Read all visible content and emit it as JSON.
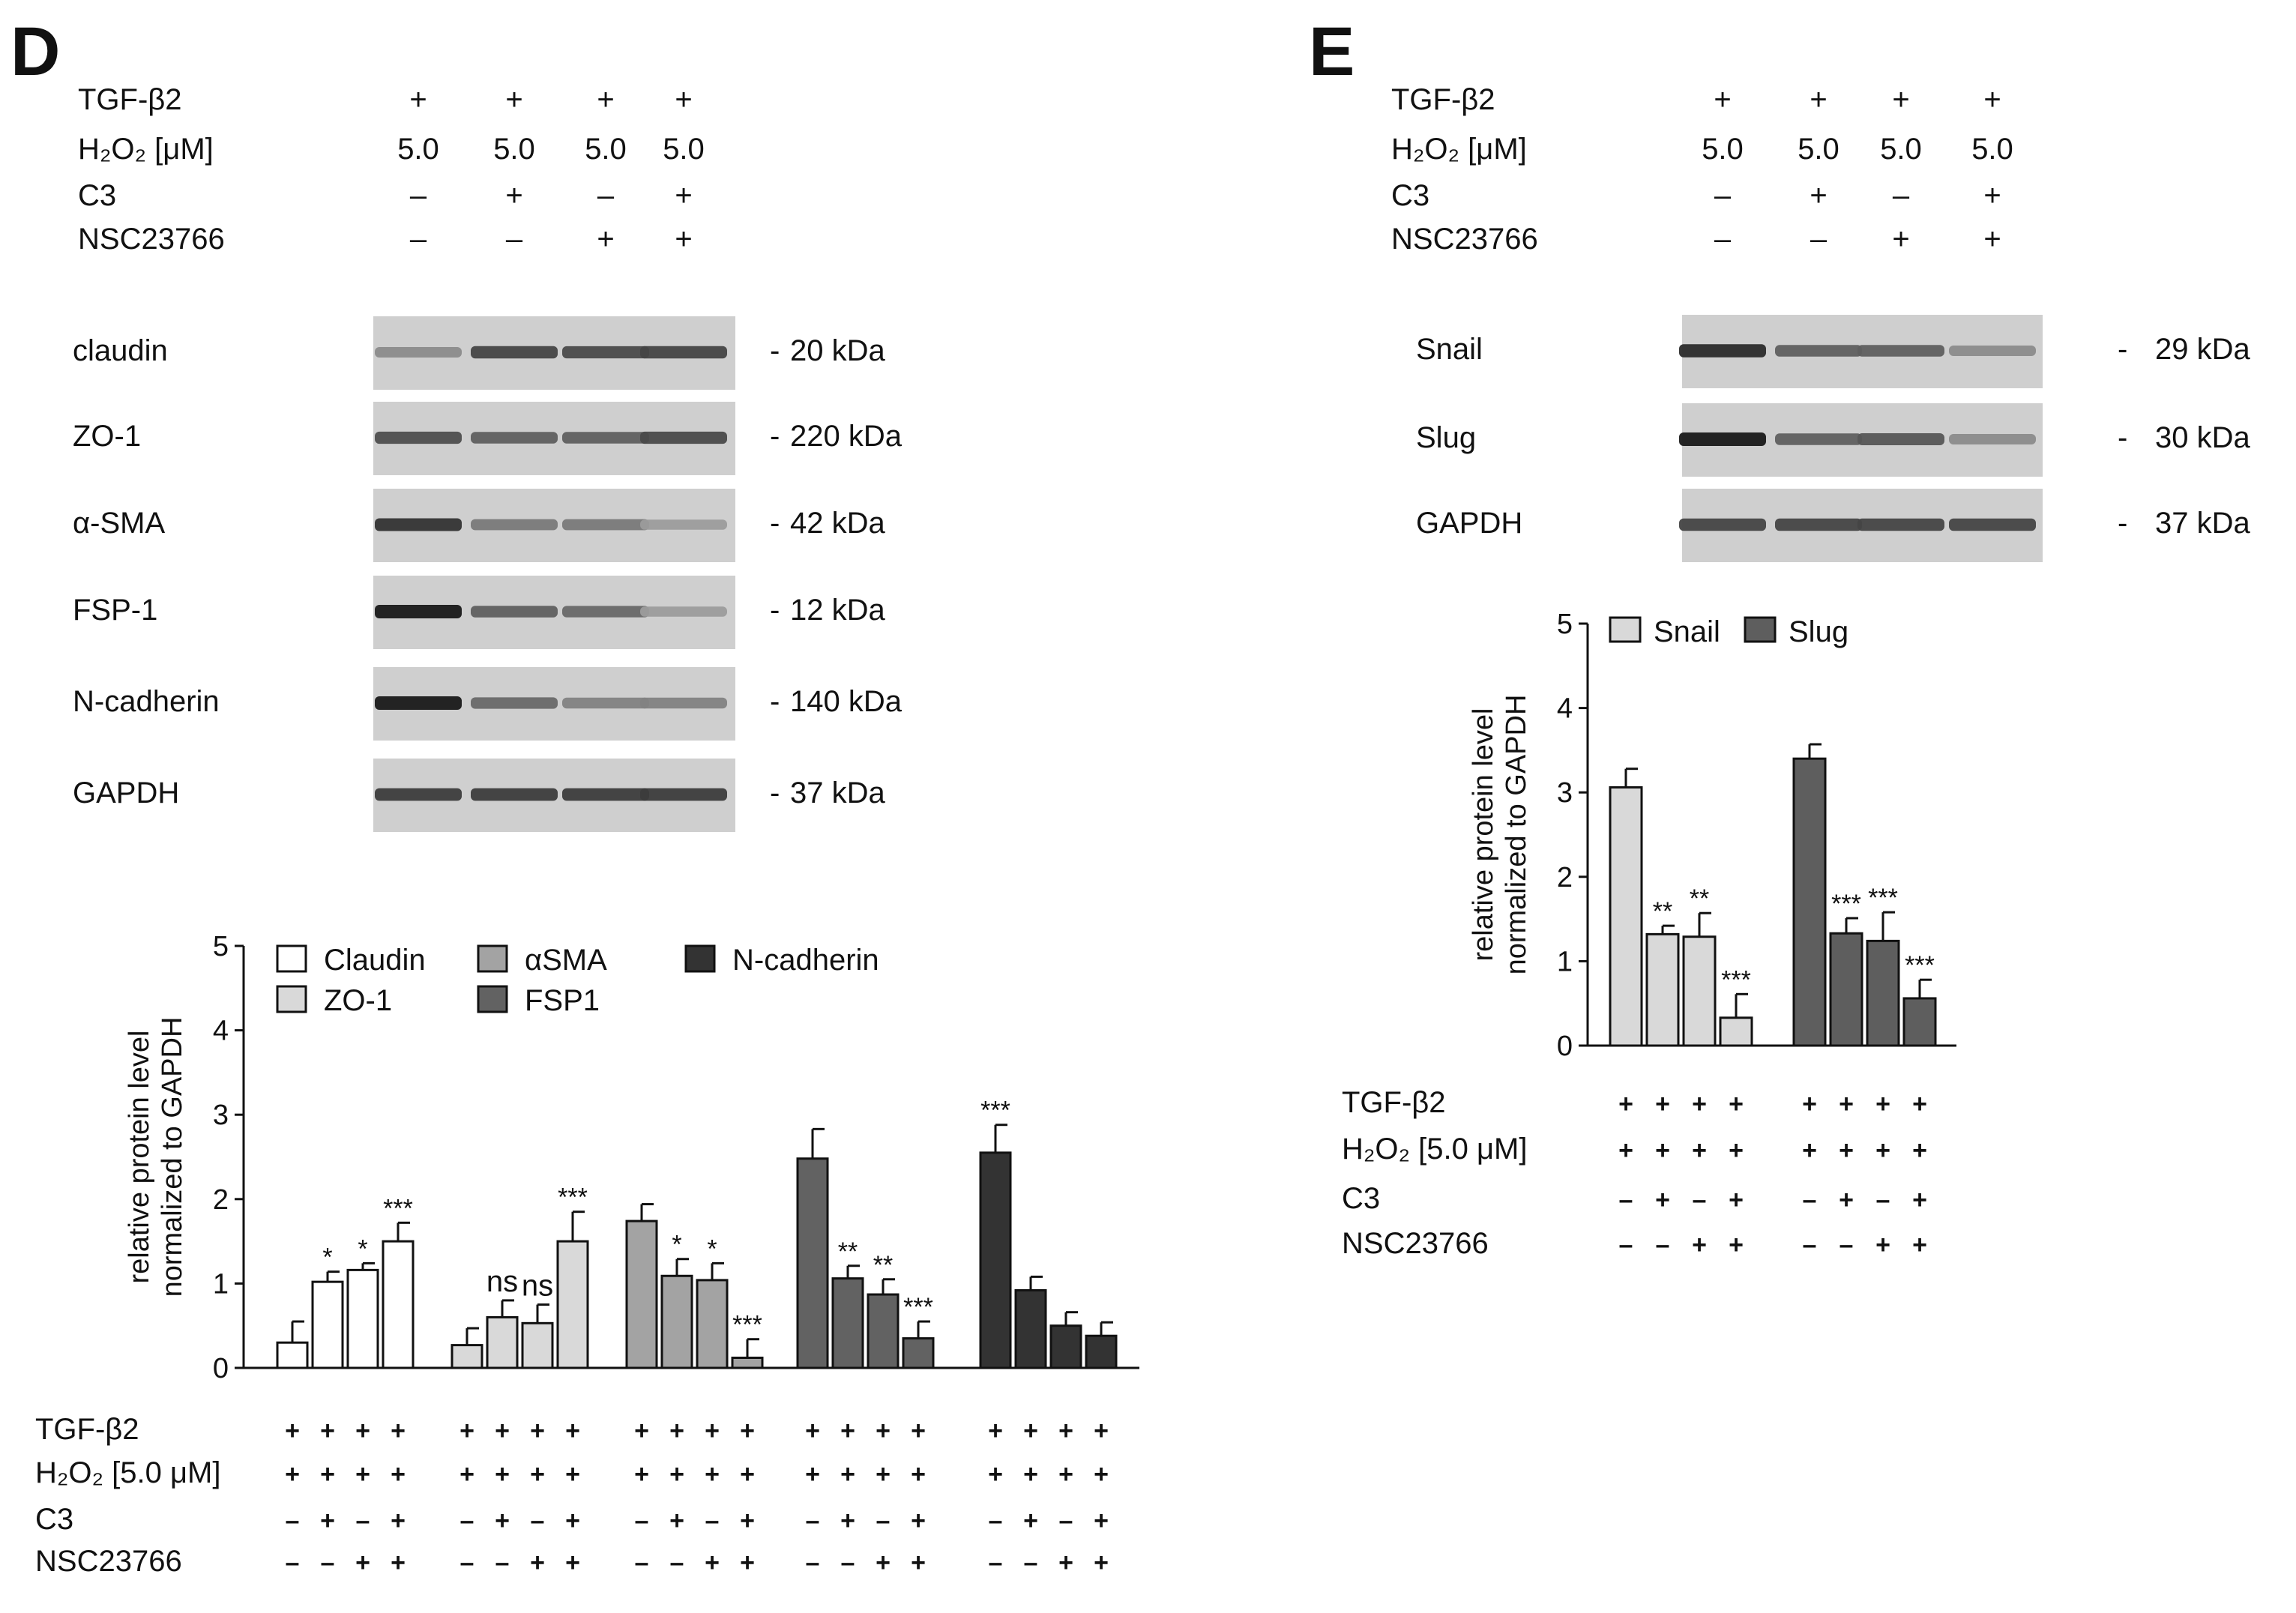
{
  "panel_d": {
    "letter": "D",
    "treatments": [
      {
        "label": "TGF-β2",
        "values": [
          "+",
          "+",
          "+",
          "+"
        ]
      },
      {
        "label": "H₂O₂ [μM]",
        "values": [
          "5.0",
          "5.0",
          "5.0",
          "5.0"
        ]
      },
      {
        "label": "C3",
        "values": [
          "–",
          "+",
          "–",
          "+"
        ]
      },
      {
        "label": "NSC23766",
        "values": [
          "–",
          "–",
          "+",
          "+"
        ]
      }
    ],
    "blots": [
      {
        "name": "claudin",
        "size": "20 kDa",
        "intensity": [
          0.35,
          0.75,
          0.72,
          0.75
        ]
      },
      {
        "name": "ZO-1",
        "size": "220 kDa",
        "intensity": [
          0.7,
          0.6,
          0.6,
          0.72
        ]
      },
      {
        "name": "α-SMA",
        "size": "42 kDa",
        "intensity": [
          0.85,
          0.45,
          0.45,
          0.25
        ]
      },
      {
        "name": "FSP-1",
        "size": "12 kDa",
        "intensity": [
          1.0,
          0.6,
          0.55,
          0.25
        ]
      },
      {
        "name": "N-cadherin",
        "size": "140 kDa",
        "intensity": [
          1.0,
          0.55,
          0.4,
          0.4
        ]
      },
      {
        "name": "GAPDH",
        "size": "37 kDa",
        "intensity": [
          0.8,
          0.8,
          0.8,
          0.8
        ]
      }
    ],
    "bottom_rows": [
      {
        "label": "TGF-β2",
        "values": [
          "+",
          "+",
          "+",
          "+"
        ]
      },
      {
        "label": "H₂O₂ [5.0 μM]",
        "values": [
          "+",
          "+",
          "+",
          "+"
        ]
      },
      {
        "label": "C3",
        "values": [
          "–",
          "+",
          "–",
          "+"
        ]
      },
      {
        "label": "NSC23766",
        "values": [
          "–",
          "–",
          "+",
          "+"
        ]
      }
    ]
  },
  "panel_e": {
    "letter": "E",
    "treatments": [
      {
        "label": "TGF-β2",
        "values": [
          "+",
          "+",
          "+",
          "+"
        ]
      },
      {
        "label": "H₂O₂ [μM]",
        "values": [
          "5.0",
          "5.0",
          "5.0",
          "5.0"
        ]
      },
      {
        "label": "C3",
        "values": [
          "–",
          "+",
          "–",
          "+"
        ]
      },
      {
        "label": "NSC23766",
        "values": [
          "–",
          "–",
          "+",
          "+"
        ]
      }
    ],
    "blots": [
      {
        "name": "Snail",
        "size": "29 kDa",
        "intensity": [
          0.9,
          0.6,
          0.6,
          0.35
        ]
      },
      {
        "name": "Slug",
        "size": "30 kDa",
        "intensity": [
          1.0,
          0.6,
          0.65,
          0.35
        ]
      },
      {
        "name": "GAPDH",
        "size": "37 kDa",
        "intensity": [
          0.75,
          0.75,
          0.75,
          0.75
        ]
      }
    ],
    "bottom_rows": [
      {
        "label": "TGF-β2",
        "values": [
          "+",
          "+",
          "+",
          "+"
        ]
      },
      {
        "label": "H₂O₂ [5.0 μM]",
        "values": [
          "+",
          "+",
          "+",
          "+"
        ]
      },
      {
        "label": "C3",
        "values": [
          "–",
          "+",
          "–",
          "+"
        ]
      },
      {
        "label": "NSC23766",
        "values": [
          "–",
          "–",
          "+",
          "+"
        ]
      }
    ]
  },
  "colors": {
    "claudin": "#ffffff",
    "zo1": "#d9d9d9",
    "asma": "#a3a3a3",
    "fsp1": "#626262",
    "ncadherin": "#333333",
    "snail": "#d9d9d9",
    "slug": "#5e5e5e",
    "axis": "#111111",
    "blot_bg": "#cfcfcf"
  },
  "chart_data": [
    {
      "type": "bar",
      "panel": "D",
      "title": "",
      "xlabel": "",
      "ylabel": "relative protein level normalized to GAPDH",
      "ylim": [
        0,
        5
      ],
      "yticks": [
        "0",
        "1",
        "2",
        "3",
        "4",
        "5"
      ],
      "categories": [
        "–/–",
        "+/–",
        "–/+",
        "+/+"
      ],
      "series": [
        {
          "name": "Claudin",
          "color_key": "claudin",
          "values": [
            0.3,
            1.02,
            1.16,
            1.5
          ],
          "errors": [
            0.25,
            0.12,
            0.08,
            0.22
          ],
          "annotations": [
            "",
            "*",
            "*",
            "***"
          ]
        },
        {
          "name": "ZO-1",
          "color_key": "zo1",
          "values": [
            0.27,
            0.6,
            0.53,
            1.5
          ],
          "errors": [
            0.2,
            0.2,
            0.22,
            0.35
          ],
          "annotations": [
            "",
            "ns",
            "ns",
            "***"
          ]
        },
        {
          "name": "αSMA",
          "color_key": "asma",
          "values": [
            1.74,
            1.09,
            1.04,
            0.12
          ],
          "errors": [
            0.2,
            0.2,
            0.2,
            0.22
          ],
          "annotations": [
            "",
            "*",
            "*",
            "***"
          ]
        },
        {
          "name": "FSP1",
          "color_key": "fsp1",
          "values": [
            2.48,
            1.06,
            0.87,
            0.35
          ],
          "errors": [
            0.35,
            0.15,
            0.18,
            0.2
          ],
          "annotations": [
            "",
            "**",
            "**",
            "***"
          ]
        },
        {
          "name": "N-cadherin",
          "color_key": "ncadherin",
          "values": [
            2.55,
            0.92,
            0.5,
            0.38
          ],
          "errors": [
            0.33,
            0.16,
            0.16,
            0.16
          ],
          "annotations": [
            "***",
            "",
            "",
            ""
          ]
        }
      ],
      "legend_position": "top"
    },
    {
      "type": "bar",
      "panel": "E",
      "title": "",
      "xlabel": "",
      "ylabel": "relative protein level normalized to GAPDH",
      "ylim": [
        0,
        5
      ],
      "yticks": [
        "0",
        "1",
        "2",
        "3",
        "4",
        "5"
      ],
      "categories": [
        "–/–",
        "+/–",
        "–/+",
        "+/+"
      ],
      "series": [
        {
          "name": "Snail",
          "color_key": "snail",
          "values": [
            3.06,
            1.32,
            1.29,
            0.33
          ],
          "errors": [
            0.22,
            0.1,
            0.28,
            0.28
          ],
          "annotations": [
            "",
            "**",
            "**",
            "***"
          ]
        },
        {
          "name": "Slug",
          "color_key": "slug",
          "values": [
            3.4,
            1.33,
            1.24,
            0.56
          ],
          "errors": [
            0.17,
            0.18,
            0.34,
            0.22
          ],
          "annotations": [
            "",
            "***",
            "***",
            "***"
          ]
        }
      ],
      "legend_position": "top-left"
    }
  ]
}
